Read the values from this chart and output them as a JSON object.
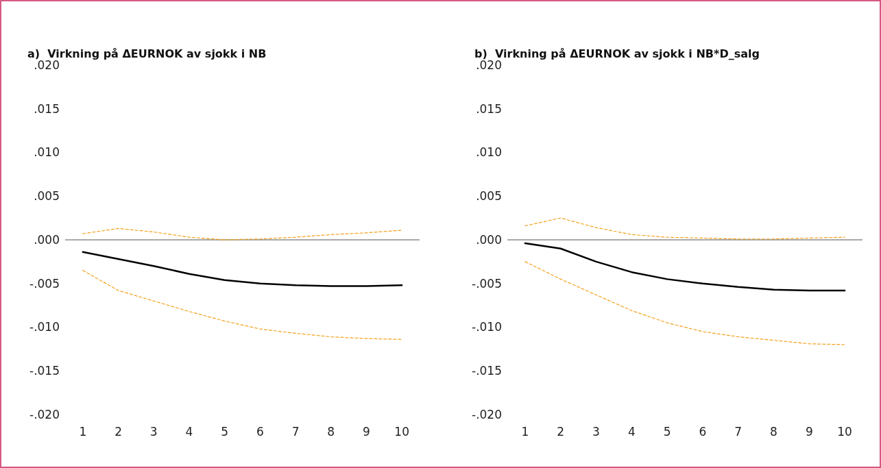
{
  "chart_data": [
    {
      "type": "line",
      "title": "a)  Virkning på ΔEURNOK av sjokk i NB",
      "categories": [
        "1",
        "2",
        "3",
        "4",
        "5",
        "6",
        "7",
        "8",
        "9",
        "10"
      ],
      "ylim": [
        -0.02,
        0.02
      ],
      "yticks": [
        {
          "value": 0.02,
          "label": ".020"
        },
        {
          "value": 0.015,
          "label": ".015"
        },
        {
          "value": 0.01,
          "label": ".010"
        },
        {
          "value": 0.005,
          "label": ".005"
        },
        {
          "value": 0,
          "label": ".000"
        },
        {
          "value": -0.005,
          "label": "-.005"
        },
        {
          "value": -0.01,
          "label": "-.010"
        },
        {
          "value": -0.015,
          "label": "-.015"
        },
        {
          "value": -0.02,
          "label": "-.020"
        }
      ],
      "ref_lines": [
        {
          "axis": "y",
          "value": 0,
          "color": "#555555"
        }
      ],
      "series": [
        {
          "color": "#000000",
          "line_style": "solid",
          "values": [
            -0.0014,
            -0.0022,
            -0.003,
            -0.0039,
            -0.0046,
            -0.005,
            -0.0052,
            -0.0053,
            -0.0053,
            -0.0052
          ]
        },
        {
          "color": "#f5a01a",
          "line_style": "dashed",
          "values": [
            0.0007,
            0.0013,
            0.0009,
            0.0003,
            0.0,
            0.0001,
            0.0003,
            0.0006,
            0.0008,
            0.0011
          ]
        },
        {
          "color": "#f5a01a",
          "line_style": "dashed",
          "values": [
            -0.0035,
            -0.0058,
            -0.007,
            -0.0082,
            -0.0093,
            -0.0102,
            -0.0107,
            -0.0111,
            -0.0113,
            -0.0114
          ]
        }
      ]
    },
    {
      "type": "line",
      "title": "b)  Virkning på ΔEURNOK av sjokk i NB*D_salg",
      "categories": [
        "1",
        "2",
        "3",
        "4",
        "5",
        "6",
        "7",
        "8",
        "9",
        "10"
      ],
      "ylim": [
        -0.02,
        0.02
      ],
      "yticks": [
        {
          "value": 0.02,
          "label": ".020"
        },
        {
          "value": 0.015,
          "label": ".015"
        },
        {
          "value": 0.01,
          "label": ".010"
        },
        {
          "value": 0.005,
          "label": ".005"
        },
        {
          "value": 0,
          "label": ".000"
        },
        {
          "value": -0.005,
          "label": "-.005"
        },
        {
          "value": -0.01,
          "label": "-.010"
        },
        {
          "value": -0.015,
          "label": "-.015"
        },
        {
          "value": -0.02,
          "label": "-.020"
        }
      ],
      "ref_lines": [
        {
          "axis": "y",
          "value": 0,
          "color": "#555555"
        }
      ],
      "series": [
        {
          "color": "#000000",
          "line_style": "solid",
          "values": [
            -0.0004,
            -0.001,
            -0.0025,
            -0.0037,
            -0.0045,
            -0.005,
            -0.0054,
            -0.0057,
            -0.0058,
            -0.0058
          ]
        },
        {
          "color": "#f5a01a",
          "line_style": "dashed",
          "values": [
            0.0016,
            0.0025,
            0.0014,
            0.0006,
            0.0003,
            0.0002,
            0.0001,
            0.0001,
            0.0002,
            0.0003
          ]
        },
        {
          "color": "#f5a01a",
          "line_style": "dashed",
          "values": [
            -0.0025,
            -0.0045,
            -0.0063,
            -0.0081,
            -0.0095,
            -0.0105,
            -0.0111,
            -0.0115,
            -0.0119,
            -0.012
          ]
        }
      ]
    }
  ]
}
